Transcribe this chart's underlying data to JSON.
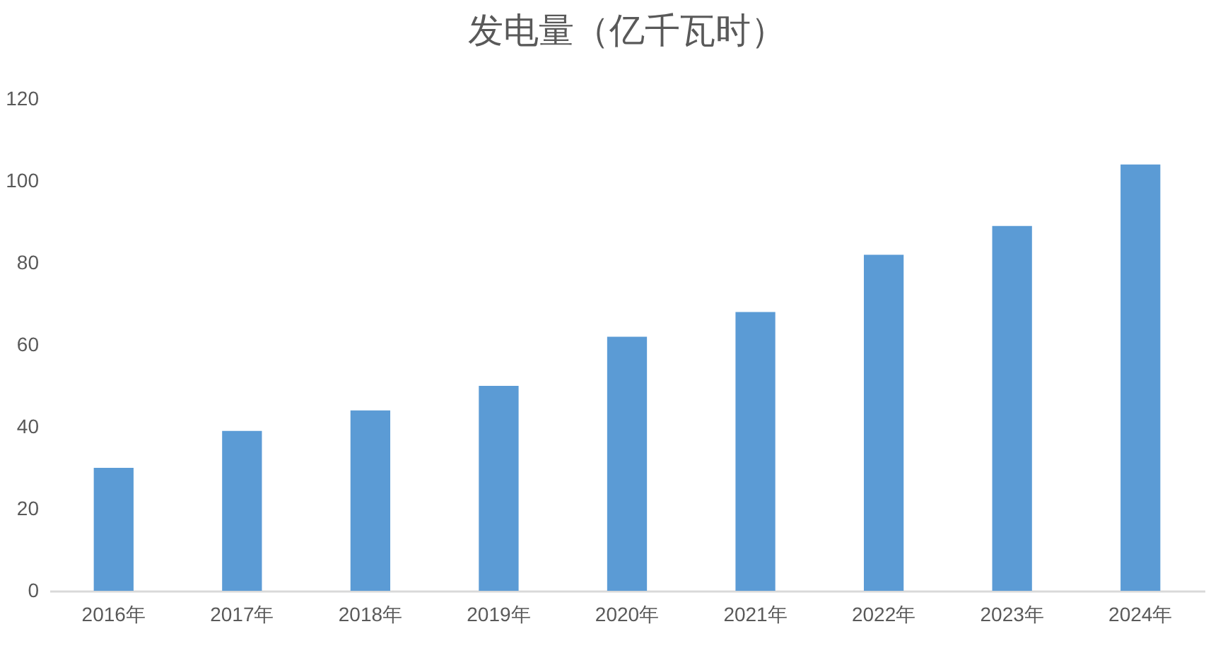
{
  "chart_data": {
    "type": "bar",
    "title": "发电量（亿千瓦时）",
    "categories": [
      "2016年",
      "2017年",
      "2018年",
      "2019年",
      "2020年",
      "2021年",
      "2022年",
      "2023年",
      "2024年"
    ],
    "values": [
      30,
      39,
      44,
      50,
      62,
      68,
      82,
      89,
      104
    ],
    "color": "#5b9bd5",
    "ylim": [
      0,
      120
    ],
    "yticks": [
      0,
      20,
      40,
      60,
      80,
      100,
      120
    ],
    "grid": false
  }
}
